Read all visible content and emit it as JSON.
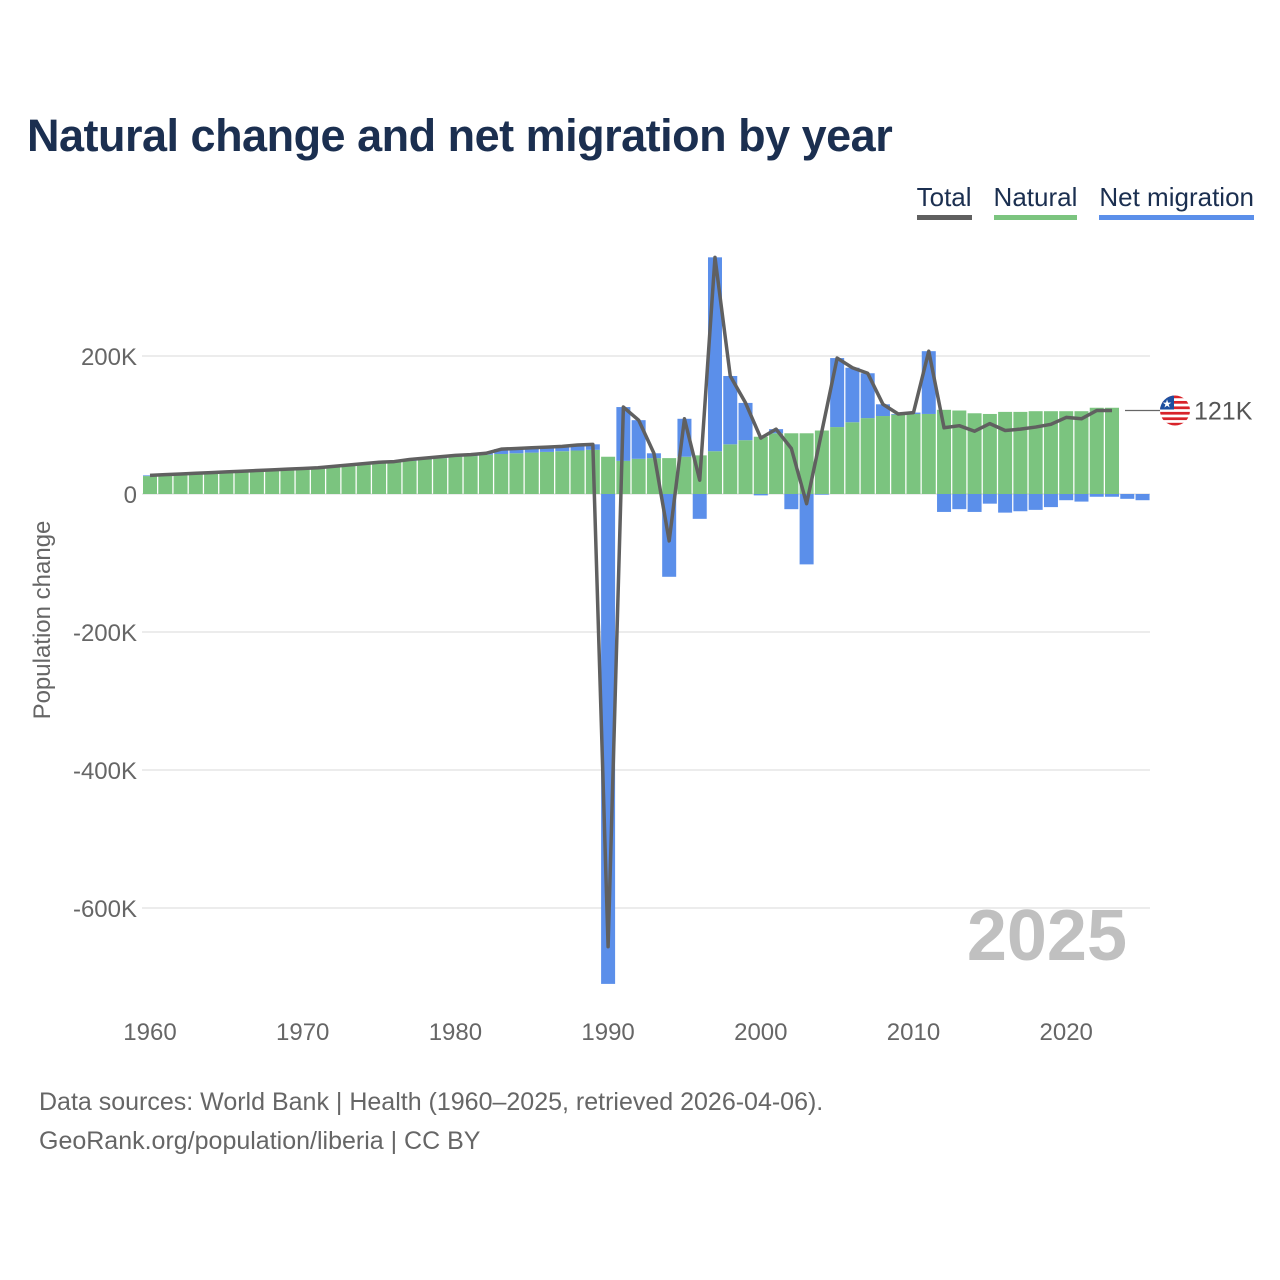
{
  "title": "Natural change and net migration by year",
  "legend": {
    "total": "Total",
    "natural": "Natural",
    "migration": "Net migration"
  },
  "colors": {
    "total": "#606060",
    "natural": "#7bc47f",
    "migration": "#5b8fea",
    "title": "#1b2f50"
  },
  "year_watermark": "2025",
  "end_label": "121K",
  "footer": {
    "line1": "Data sources: World Bank | Health (1960–2025, retrieved 2026-04-06).",
    "line2": "GeoRank.org/population/liberia | CC BY"
  },
  "chart_data": {
    "type": "bar",
    "title": "Natural change and net migration by year",
    "xlabel": "",
    "ylabel": "Population change",
    "ylim": [
      -720000,
      345000
    ],
    "xlim": [
      1960,
      2025
    ],
    "yticks": [
      {
        "v": 200000,
        "label": "200K"
      },
      {
        "v": 0,
        "label": "0"
      },
      {
        "v": -200000,
        "label": "-200K"
      },
      {
        "v": -400000,
        "label": "-400K"
      },
      {
        "v": -600000,
        "label": "-600K"
      }
    ],
    "xticks": [
      1960,
      1970,
      1980,
      1990,
      2000,
      2010,
      2020
    ],
    "years": [
      1960,
      1961,
      1962,
      1963,
      1964,
      1965,
      1966,
      1967,
      1968,
      1969,
      1970,
      1971,
      1972,
      1973,
      1974,
      1975,
      1976,
      1977,
      1978,
      1979,
      1980,
      1981,
      1982,
      1983,
      1984,
      1985,
      1986,
      1987,
      1988,
      1989,
      1990,
      1991,
      1992,
      1993,
      1994,
      1995,
      1996,
      1997,
      1998,
      1999,
      2000,
      2001,
      2002,
      2003,
      2004,
      2005,
      2006,
      2007,
      2008,
      2009,
      2010,
      2011,
      2012,
      2013,
      2014,
      2015,
      2016,
      2017,
      2018,
      2019,
      2020,
      2021,
      2022,
      2023,
      2024,
      2025
    ],
    "series": [
      {
        "name": "Natural",
        "values": [
          26000,
          27000,
          28000,
          29000,
          30000,
          31000,
          32000,
          33000,
          34000,
          35000,
          36000,
          37000,
          39000,
          41000,
          43000,
          45000,
          46000,
          48000,
          50000,
          52000,
          54000,
          55000,
          57000,
          58000,
          59000,
          60000,
          61000,
          62000,
          63000,
          64000,
          54000,
          48000,
          51000,
          52000,
          52000,
          54000,
          56000,
          62000,
          72000,
          78000,
          83000,
          88000,
          88000,
          88000,
          92000,
          97000,
          104000,
          110000,
          113000,
          115000,
          116000,
          116000,
          122000,
          121000,
          117000,
          116000,
          119000,
          119000,
          120000,
          120000,
          120000,
          120000,
          125000,
          125000,
          null,
          null
        ]
      },
      {
        "name": "Net migration",
        "values": [
          1000,
          1000,
          1000,
          1000,
          1000,
          1000,
          1000,
          1000,
          1000,
          1000,
          1000,
          1000,
          1000,
          1000,
          1000,
          1000,
          1000,
          2000,
          2000,
          2000,
          2000,
          2000,
          2000,
          7000,
          7000,
          7000,
          7000,
          7000,
          8000,
          8000,
          -710000,
          78000,
          56000,
          7000,
          -120000,
          55000,
          -36000,
          281000,
          99000,
          54000,
          -2000,
          6000,
          -22000,
          -102000,
          -1000,
          100000,
          79000,
          65000,
          17000,
          1000,
          2000,
          91000,
          -26000,
          -22000,
          -26000,
          -14000,
          -27000,
          -25000,
          -23000,
          -19000,
          -9000,
          -11000,
          -4000,
          -4000,
          -7000,
          -9000
        ]
      },
      {
        "name": "Total",
        "type": "line"
      }
    ],
    "legend_position": "top-right",
    "grid": true,
    "annotations": [
      "2025",
      "121K"
    ]
  }
}
